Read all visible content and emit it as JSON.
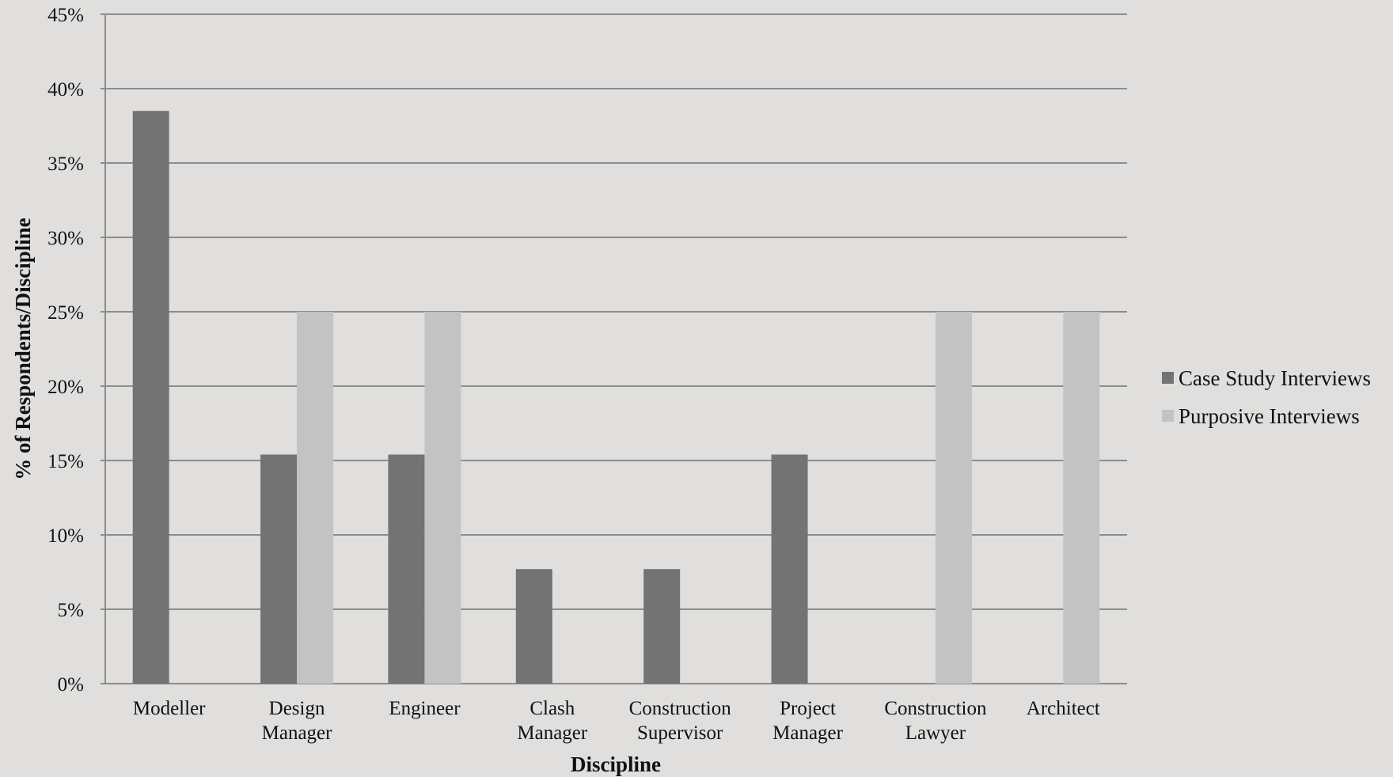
{
  "chart_data": {
    "type": "bar",
    "xlabel": "Discipline",
    "ylabel": "% of Respondents/Discipline",
    "ylim": [
      0,
      45
    ],
    "y_ticks": [
      "0%",
      "5%",
      "10%",
      "15%",
      "20%",
      "25%",
      "30%",
      "35%",
      "40%",
      "45%"
    ],
    "grid": true,
    "legend_position": "right",
    "categories": [
      [
        "Modeller"
      ],
      [
        "Design",
        "Manager"
      ],
      [
        "Engineer"
      ],
      [
        "Clash",
        "Manager"
      ],
      [
        "Construction",
        "Supervisor"
      ],
      [
        "Project",
        "Manager"
      ],
      [
        "Construction",
        "Lawyer"
      ],
      [
        "Architect"
      ]
    ],
    "series": [
      {
        "name": "Case Study Interviews",
        "color": "#737373",
        "values": [
          38.5,
          15.4,
          15.4,
          7.7,
          7.7,
          15.4,
          0,
          0
        ]
      },
      {
        "name": "Purposive Interviews",
        "color": "#c3c3c3",
        "values": [
          0,
          25,
          25,
          0,
          0,
          0,
          25,
          25
        ]
      }
    ]
  },
  "colors": {
    "background": "#e0dfdd",
    "gridline": "#8c8c8c"
  }
}
